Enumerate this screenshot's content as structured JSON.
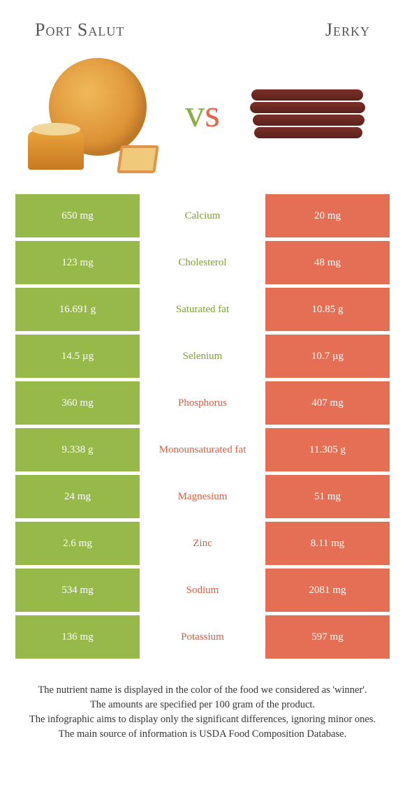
{
  "header": {
    "left": "Port Salut",
    "right": "Jerky"
  },
  "colors": {
    "left": "#97b94a",
    "right": "#e46f54",
    "left_text": "#7e9e35",
    "right_text": "#d55c3f"
  },
  "rows": [
    {
      "left": "650 mg",
      "label": "Calcium",
      "right": "20 mg",
      "winner": "left"
    },
    {
      "left": "123 mg",
      "label": "Cholesterol",
      "right": "48 mg",
      "winner": "left"
    },
    {
      "left": "16.691 g",
      "label": "Saturated fat",
      "right": "10.85 g",
      "winner": "left"
    },
    {
      "left": "14.5 µg",
      "label": "Selenium",
      "right": "10.7 µg",
      "winner": "left"
    },
    {
      "left": "360 mg",
      "label": "Phosphorus",
      "right": "407 mg",
      "winner": "right"
    },
    {
      "left": "9.338 g",
      "label": "Monounsaturated fat",
      "right": "11.305 g",
      "winner": "right"
    },
    {
      "left": "24 mg",
      "label": "Magnesium",
      "right": "51 mg",
      "winner": "right"
    },
    {
      "left": "2.6 mg",
      "label": "Zinc",
      "right": "8.11 mg",
      "winner": "right"
    },
    {
      "left": "534 mg",
      "label": "Sodium",
      "right": "2081 mg",
      "winner": "right"
    },
    {
      "left": "136 mg",
      "label": "Potassium",
      "right": "597 mg",
      "winner": "right"
    }
  ],
  "footer": {
    "line1": "The nutrient name is displayed in the color of the food we considered as 'winner'.",
    "line2": "The amounts are specified per 100 gram of the product.",
    "line3": "The infographic aims to display only the significant differences, ignoring minor ones.",
    "line4": "The main source of information is USDA Food Composition Database."
  }
}
